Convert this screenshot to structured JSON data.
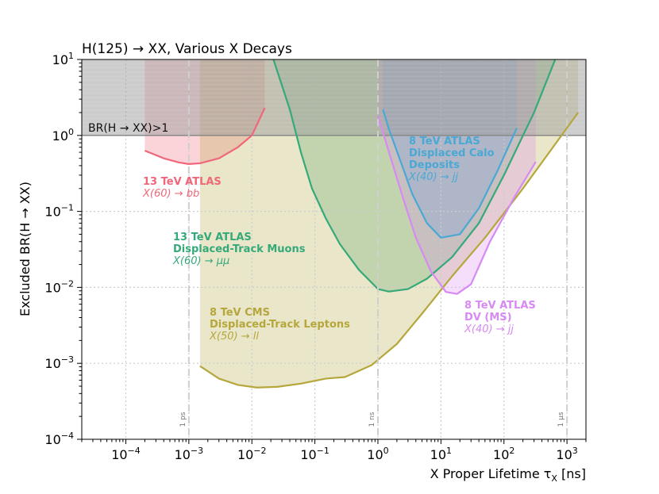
{
  "chart_data": {
    "type": "area",
    "title": "H(125) → XX, Various X Decays",
    "xlabel": "X Proper Lifetime τ_X [ns]",
    "ylabel": "Excluded BR(H → XX)",
    "xscale": "log",
    "yscale": "log",
    "xlim": [
      2e-05,
      2000
    ],
    "ylim": [
      0.0001,
      10
    ],
    "x_ticks": [
      {
        "value": 0.0001,
        "label": "10^-4"
      },
      {
        "value": 0.001,
        "label": "10^-3"
      },
      {
        "value": 0.01,
        "label": "10^-2"
      },
      {
        "value": 0.1,
        "label": "10^-1"
      },
      {
        "value": 1,
        "label": "10^0"
      },
      {
        "value": 10,
        "label": "10^1"
      },
      {
        "value": 100,
        "label": "10^2"
      },
      {
        "value": 1000,
        "label": "10^3"
      }
    ],
    "y_ticks": [
      {
        "value": 0.0001,
        "label": "10^-4"
      },
      {
        "value": 0.001,
        "label": "10^-3"
      },
      {
        "value": 0.01,
        "label": "10^-2"
      },
      {
        "value": 0.1,
        "label": "10^-1"
      },
      {
        "value": 1,
        "label": "10^0"
      },
      {
        "value": 10,
        "label": "10^1"
      }
    ],
    "br_band_label": "BR(H → XX)>1",
    "reference_lines": [
      {
        "value": 0.001,
        "label": "1 ps"
      },
      {
        "value": 1,
        "label": "1 ns"
      },
      {
        "value": 1000,
        "label": "1 μs"
      }
    ],
    "series": [
      {
        "name": "13 TeV ATLAS X(60) → bb",
        "label_bold": "13 TeV ATLAS",
        "label_lines": [],
        "label_italic": "X(60) → bb",
        "color": "#f0667a",
        "points": [
          [
            0.0002,
            0.63
          ],
          [
            0.0004,
            0.5
          ],
          [
            0.0007,
            0.44
          ],
          [
            0.001,
            0.42
          ],
          [
            0.0015,
            0.43
          ],
          [
            0.003,
            0.5
          ],
          [
            0.006,
            0.7
          ],
          [
            0.01,
            1.0
          ],
          [
            0.016,
            2.3
          ]
        ]
      },
      {
        "name": "13 TeV ATLAS Displaced-Track Muons X(60) → μμ",
        "label_bold": "13 TeV ATLAS",
        "label_lines": [
          "Displaced-Track Muons"
        ],
        "label_italic": "X(60) → μμ",
        "color": "#36a97a",
        "points": [
          [
            0.022,
            10
          ],
          [
            0.04,
            2.2
          ],
          [
            0.06,
            0.6
          ],
          [
            0.09,
            0.2
          ],
          [
            0.15,
            0.08
          ],
          [
            0.25,
            0.037
          ],
          [
            0.5,
            0.017
          ],
          [
            1.0,
            0.0095
          ],
          [
            1.5,
            0.0088
          ],
          [
            3,
            0.0095
          ],
          [
            6,
            0.013
          ],
          [
            15,
            0.025
          ],
          [
            40,
            0.07
          ],
          [
            100,
            0.3
          ],
          [
            300,
            2.0
          ],
          [
            650,
            10
          ]
        ]
      },
      {
        "name": "8 TeV CMS Displaced-Track Leptons X(50) → ll",
        "label_bold": "8 TeV CMS",
        "label_lines": [
          "Displaced-Track Leptons"
        ],
        "label_italic": "X(50) → ll",
        "color": "#b5a73c",
        "points": [
          [
            0.0015,
            0.00092
          ],
          [
            0.003,
            0.00063
          ],
          [
            0.006,
            0.00052
          ],
          [
            0.012,
            0.00048
          ],
          [
            0.025,
            0.00049
          ],
          [
            0.06,
            0.00054
          ],
          [
            0.15,
            0.00063
          ],
          [
            0.3,
            0.00066
          ],
          [
            0.8,
            0.00095
          ],
          [
            2,
            0.0018
          ],
          [
            5,
            0.0045
          ],
          [
            15,
            0.014
          ],
          [
            50,
            0.045
          ],
          [
            200,
            0.2
          ],
          [
            600,
            0.7
          ],
          [
            1500,
            2.0
          ]
        ]
      },
      {
        "name": "8 TeV ATLAS Displaced Calo Deposits X(40) → jj",
        "label_bold": "8 TeV ATLAS",
        "label_lines": [
          "Displaced Calo",
          "Deposits"
        ],
        "label_italic": "X(40) → jj",
        "color": "#4aa8d4",
        "points": [
          [
            1.2,
            2.2
          ],
          [
            1.5,
            1.2
          ],
          [
            2.2,
            0.5
          ],
          [
            3.5,
            0.17
          ],
          [
            6,
            0.07
          ],
          [
            10,
            0.045
          ],
          [
            20,
            0.05
          ],
          [
            40,
            0.11
          ],
          [
            80,
            0.35
          ],
          [
            160,
            1.25
          ]
        ]
      },
      {
        "name": "8 TeV ATLAS DV (MS) X(40) → jj",
        "label_bold": "8 TeV ATLAS",
        "label_lines": [
          "DV (MS)"
        ],
        "label_italic": "X(40) → jj",
        "color": "#d68af2",
        "points": [
          [
            1.0,
            1.8
          ],
          [
            1.5,
            0.6
          ],
          [
            2.5,
            0.15
          ],
          [
            4,
            0.045
          ],
          [
            7,
            0.016
          ],
          [
            12,
            0.0087
          ],
          [
            18,
            0.0082
          ],
          [
            30,
            0.011
          ],
          [
            60,
            0.04
          ],
          [
            150,
            0.16
          ],
          [
            320,
            0.45
          ]
        ]
      }
    ]
  }
}
